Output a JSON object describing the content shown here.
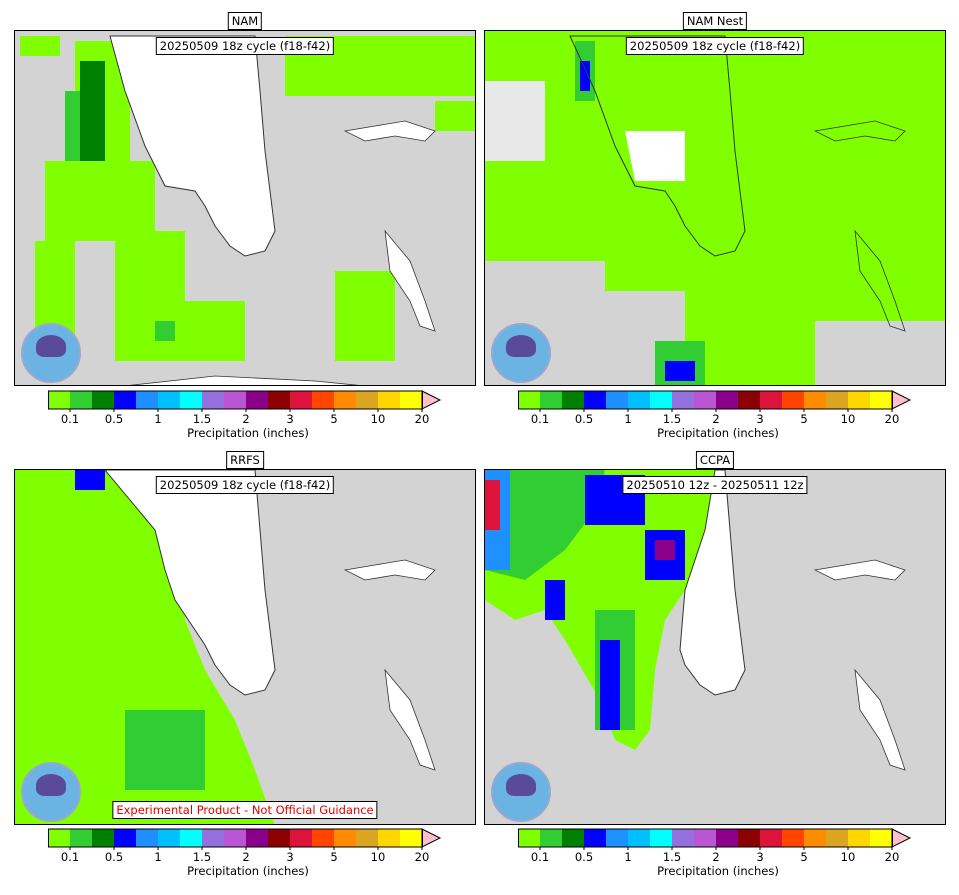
{
  "panels": [
    {
      "title": "NAM",
      "cycle": "20250509 18z cycle (f18-f42)"
    },
    {
      "title": "NAM Nest",
      "cycle": "20250509 18z cycle (f18-f42)"
    },
    {
      "title": "RRFS",
      "cycle": "20250509 18z cycle (f18-f42)",
      "disclaimer": "Experimental Product - Not Official Guidance"
    },
    {
      "title": "CCPA",
      "cycle": "20250510 12z - 20250511 12z"
    }
  ],
  "colorbar": {
    "label": "Precipitation (inches)",
    "ticks": [
      "0.1",
      "0.5",
      "1",
      "1.5",
      "2",
      "3",
      "5",
      "10",
      "20"
    ],
    "colors": [
      "#7fff00",
      "#32cd32",
      "#008000",
      "#0000ff",
      "#1e90ff",
      "#00bfff",
      "#00ffff",
      "#9370db",
      "#ba55d3",
      "#8b008b",
      "#8b0000",
      "#dc143c",
      "#ff4500",
      "#ff8c00",
      "#daa520",
      "#ffd700",
      "#ffff00"
    ],
    "extend_color": "#ffc0cb"
  },
  "colors": {
    "land_no_precip": "#d3d3d3",
    "water": "#ffffff",
    "logo": "noaa-logo"
  }
}
